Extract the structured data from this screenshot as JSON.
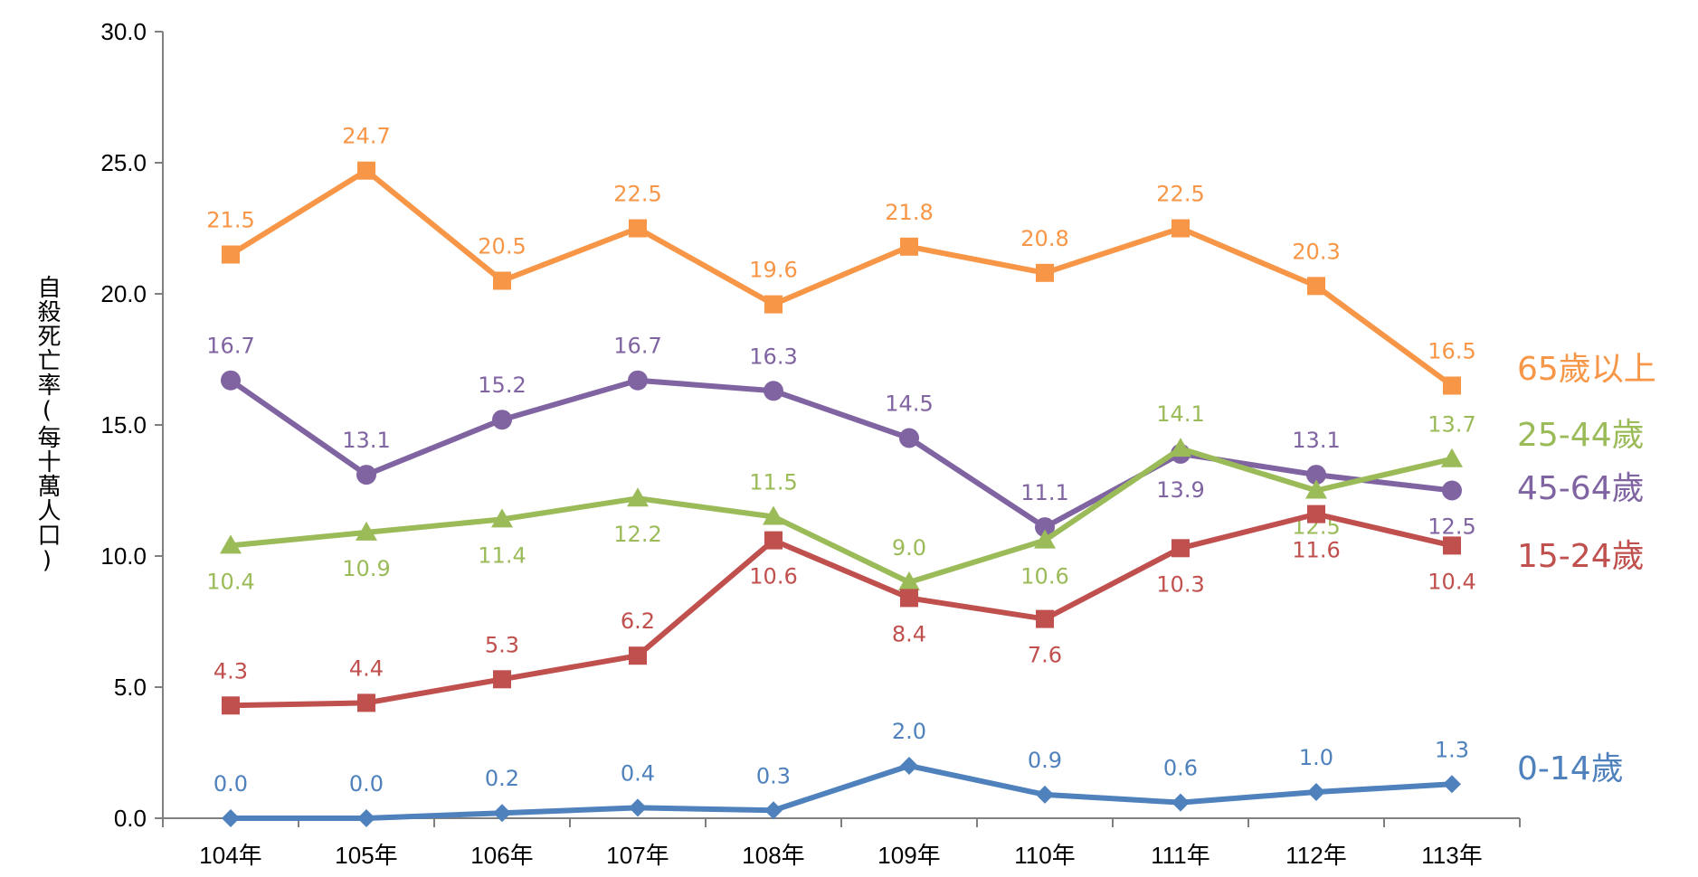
{
  "chart_data": {
    "type": "line",
    "ylabel": "自殺死亡率(每十萬人口)",
    "ylim": [
      0,
      30
    ],
    "yticks": [
      "0.0",
      "5.0",
      "10.0",
      "15.0",
      "20.0",
      "25.0",
      "30.0"
    ],
    "categories": [
      "104年",
      "105年",
      "106年",
      "107年",
      "108年",
      "109年",
      "110年",
      "111年",
      "112年",
      "113年"
    ],
    "legend_placement": "right, inline at line ends",
    "series": [
      {
        "name": "65歲以上",
        "color": "#F79646",
        "marker": "square",
        "values": [
          21.5,
          24.7,
          20.5,
          22.5,
          19.6,
          21.8,
          20.8,
          22.5,
          20.3,
          16.5
        ],
        "labels": [
          "21.5",
          "24.7",
          "20.5",
          "22.5",
          "19.6",
          "21.8",
          "20.8",
          "22.5",
          "20.3",
          "16.5"
        ],
        "label_pos": [
          "above",
          "above",
          "above",
          "above",
          "above",
          "above",
          "above",
          "above",
          "above",
          "above"
        ]
      },
      {
        "name": "45-64歲",
        "color": "#8064A2",
        "marker": "circle",
        "values": [
          16.7,
          13.1,
          15.2,
          16.7,
          16.3,
          14.5,
          11.1,
          13.9,
          13.1,
          12.5
        ],
        "labels": [
          "16.7",
          "13.1",
          "15.2",
          "16.7",
          "16.3",
          "14.5",
          "11.1",
          "13.9",
          "13.1",
          "12.5"
        ],
        "label_pos": [
          "above",
          "above",
          "above",
          "above",
          "above",
          "above",
          "above",
          "below",
          "above",
          "below"
        ]
      },
      {
        "name": "25-44歲",
        "color": "#9BBB59",
        "marker": "triangle",
        "values": [
          10.4,
          10.9,
          11.4,
          12.2,
          11.5,
          9.0,
          10.6,
          14.1,
          12.5,
          13.7
        ],
        "labels": [
          "10.4",
          "10.9",
          "11.4",
          "12.2",
          "11.5",
          "9.0",
          "10.6",
          "14.1",
          "12.5",
          "13.7"
        ],
        "label_pos": [
          "below",
          "below",
          "below",
          "below",
          "above",
          "above",
          "below",
          "above",
          "below",
          "above"
        ]
      },
      {
        "name": "15-24歲",
        "color": "#C0504D",
        "marker": "square",
        "values": [
          4.3,
          4.4,
          5.3,
          6.2,
          10.6,
          8.4,
          7.6,
          10.3,
          11.6,
          10.4
        ],
        "labels": [
          "4.3",
          "4.4",
          "5.3",
          "6.2",
          "10.6",
          "8.4",
          "7.6",
          "10.3",
          "11.6",
          "10.4"
        ],
        "label_pos": [
          "above",
          "above",
          "above",
          "above",
          "below",
          "below",
          "below",
          "below",
          "below",
          "below"
        ]
      },
      {
        "name": "0-14歲",
        "color": "#4F81BD",
        "marker": "diamond",
        "values": [
          0.0,
          0.0,
          0.2,
          0.4,
          0.3,
          2.0,
          0.9,
          0.6,
          1.0,
          1.3
        ],
        "labels": [
          "0.0",
          "0.0",
          "0.2",
          "0.4",
          "0.3",
          "2.0",
          "0.9",
          "0.6",
          "1.0",
          "1.3"
        ],
        "label_pos": [
          "above",
          "above",
          "above",
          "above",
          "above",
          "above",
          "above",
          "above",
          "above",
          "above"
        ]
      }
    ]
  }
}
